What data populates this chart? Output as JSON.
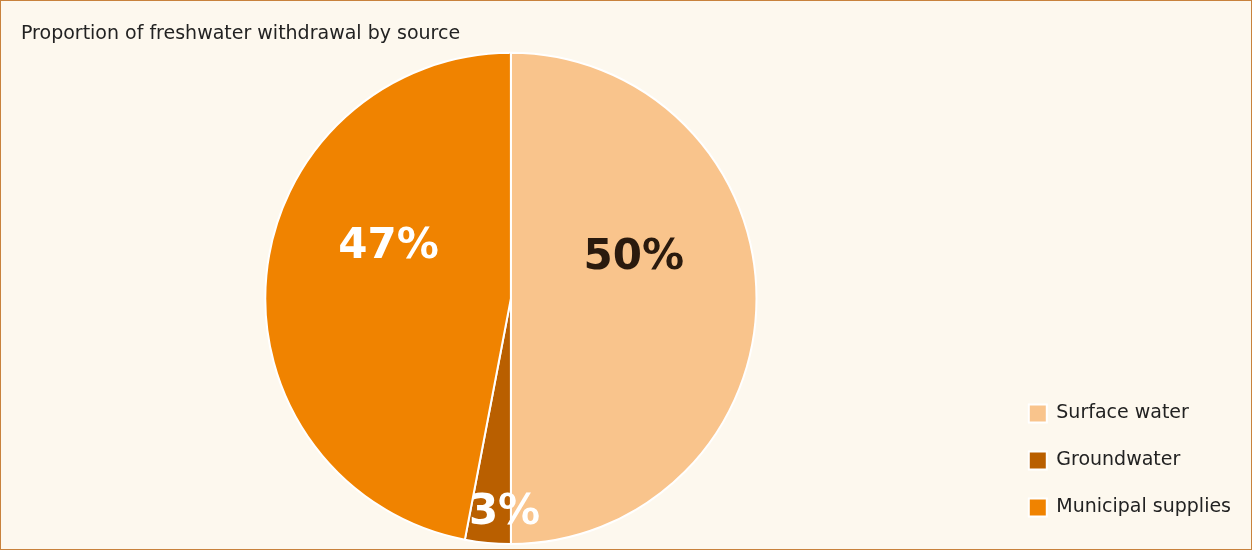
{
  "chart_data": {
    "type": "pie",
    "title": "Proportion of freshwater withdrawal by source",
    "categories": [
      "Surface water",
      "Groundwater",
      "Municipal supplies"
    ],
    "values": [
      50,
      3,
      47
    ],
    "colors": [
      "#f9c48c",
      "#b95f00",
      "#f08300"
    ],
    "value_labels": [
      "50%",
      "3%",
      "47%"
    ],
    "legend": "right"
  }
}
